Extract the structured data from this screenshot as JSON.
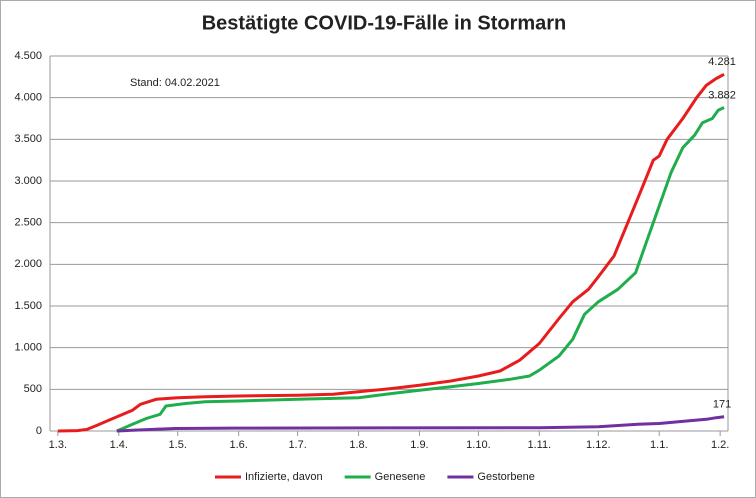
{
  "chart_data": {
    "type": "line",
    "title": "Bestätigte COVID-19-Fälle in Stormarn",
    "annotation": "Stand: 04.02.2021",
    "xlim": [
      -4,
      341
    ],
    "xticks": [
      {
        "value": 0,
        "label": "1.3."
      },
      {
        "value": 31,
        "label": "1.4."
      },
      {
        "value": 61,
        "label": "1.5."
      },
      {
        "value": 92,
        "label": "1.6."
      },
      {
        "value": 122,
        "label": "1.7."
      },
      {
        "value": 153,
        "label": "1.8."
      },
      {
        "value": 184,
        "label": "1.9."
      },
      {
        "value": 214,
        "label": "1.10."
      },
      {
        "value": 245,
        "label": "1.11."
      },
      {
        "value": 275,
        "label": "1.12."
      },
      {
        "value": 306,
        "label": "1.1."
      },
      {
        "value": 337,
        "label": "1.2."
      }
    ],
    "ylim": [
      0,
      4500
    ],
    "yticks": [
      0,
      {
        "value": 500,
        "label": "500"
      },
      {
        "value": 1000,
        "label": "1.000"
      },
      {
        "value": 1500,
        "label": "1.500"
      },
      {
        "value": 2000,
        "label": "2.000"
      },
      {
        "value": 2500,
        "label": "2.500"
      },
      {
        "value": 3000,
        "label": "3.000"
      },
      {
        "value": 3500,
        "label": "3.500"
      },
      {
        "value": 4000,
        "label": "4.000"
      },
      {
        "value": 4500,
        "label": "4.500"
      }
    ],
    "grid": true,
    "legend": "bottom",
    "series": [
      {
        "name": "Infizierte, davon",
        "color": "#e81c1c",
        "end_label": "4.281",
        "x": [
          0,
          10,
          15,
          20,
          25,
          31,
          38,
          42,
          50,
          61,
          75,
          92,
          122,
          140,
          153,
          170,
          184,
          200,
          214,
          225,
          235,
          245,
          255,
          262,
          270,
          275,
          283,
          290,
          297,
          303,
          306,
          310,
          318,
          325,
          330,
          335,
          339
        ],
        "values": [
          0,
          5,
          20,
          70,
          120,
          180,
          250,
          320,
          380,
          400,
          410,
          420,
          430,
          440,
          470,
          510,
          550,
          600,
          660,
          720,
          850,
          1050,
          1350,
          1550,
          1700,
          1850,
          2100,
          2500,
          2900,
          3250,
          3300,
          3500,
          3750,
          4000,
          4150,
          4230,
          4281
        ]
      },
      {
        "name": "Genesene",
        "color": "#1fae4b",
        "end_label": "3.882",
        "x": [
          30,
          38,
          45,
          52,
          55,
          65,
          75,
          92,
          122,
          153,
          170,
          184,
          200,
          214,
          230,
          240,
          245,
          255,
          262,
          268,
          275,
          285,
          294,
          300,
          306,
          312,
          318,
          324,
          328,
          333,
          336,
          339
        ],
        "values": [
          0,
          80,
          150,
          200,
          300,
          330,
          350,
          360,
          380,
          400,
          450,
          490,
          530,
          570,
          620,
          660,
          730,
          900,
          1100,
          1400,
          1550,
          1700,
          1900,
          2300,
          2700,
          3100,
          3400,
          3550,
          3700,
          3750,
          3850,
          3882
        ]
      },
      {
        "name": "Gestorbene",
        "color": "#7030a0",
        "end_label": "171",
        "x": [
          30,
          50,
          60,
          90,
          245,
          275,
          295,
          306,
          320,
          330,
          335,
          339
        ],
        "values": [
          0,
          20,
          30,
          35,
          40,
          50,
          80,
          90,
          120,
          140,
          160,
          171
        ]
      }
    ]
  }
}
